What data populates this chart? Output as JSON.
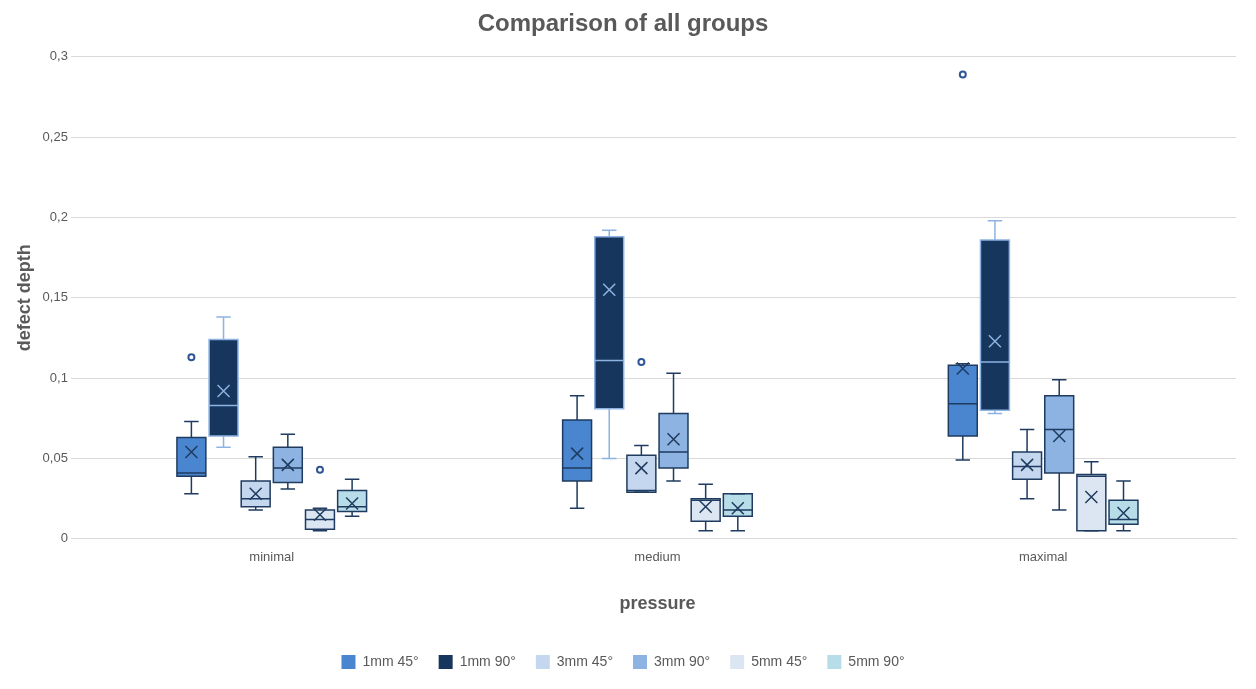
{
  "chart_data": {
    "type": "box",
    "title": "Comparison of all groups",
    "xlabel": "pressure",
    "ylabel": "defect depth",
    "categories": [
      "minimal",
      "medium",
      "maximal"
    ],
    "ylim": [
      0,
      0.3
    ],
    "yticks": [
      {
        "value": 0,
        "label": "0"
      },
      {
        "value": 0.05,
        "label": "0,05"
      },
      {
        "value": 0.1,
        "label": "0,1"
      },
      {
        "value": 0.15,
        "label": "0,15"
      },
      {
        "value": 0.2,
        "label": "0,2"
      },
      {
        "value": 0.25,
        "label": "0,25"
      },
      {
        "value": 0.3,
        "label": "0,3"
      }
    ],
    "grid": "y",
    "legend": "bottom",
    "series": [
      {
        "name": "1mm 45°",
        "color": "#4a86cf",
        "boxes": [
          {
            "low": 0.028,
            "q1": 0.039,
            "median": 0.041,
            "q3": 0.063,
            "high": 0.073,
            "mean": 0.054,
            "outliers": [
              0.113
            ]
          },
          {
            "low": 0.019,
            "q1": 0.036,
            "median": 0.044,
            "q3": 0.074,
            "high": 0.089,
            "mean": 0.053
          },
          {
            "low": 0.049,
            "q1": 0.064,
            "median": 0.084,
            "q3": 0.108,
            "high": 0.109,
            "mean": 0.106,
            "outliers": [
              0.289
            ]
          }
        ]
      },
      {
        "name": "1mm 90°",
        "color": "#17365d",
        "boxes": [
          {
            "low": 0.057,
            "q1": 0.064,
            "median": 0.083,
            "q3": 0.124,
            "high": 0.138,
            "mean": 0.092
          },
          {
            "low": 0.05,
            "q1": 0.081,
            "median": 0.111,
            "q3": 0.188,
            "high": 0.192,
            "mean": 0.155
          },
          {
            "low": 0.078,
            "q1": 0.08,
            "median": 0.11,
            "q3": 0.186,
            "high": 0.198,
            "mean": 0.123
          }
        ]
      },
      {
        "name": "3mm 45°",
        "color": "#c5d7ef",
        "boxes": [
          {
            "low": 0.018,
            "q1": 0.02,
            "median": 0.025,
            "q3": 0.036,
            "high": 0.051,
            "mean": 0.028
          },
          {
            "low": 0.029,
            "q1": 0.029,
            "median": 0.03,
            "q3": 0.052,
            "high": 0.058,
            "mean": 0.044,
            "outliers": [
              0.11
            ]
          },
          {
            "low": 0.025,
            "q1": 0.037,
            "median": 0.045,
            "q3": 0.054,
            "high": 0.068,
            "mean": 0.046
          }
        ]
      },
      {
        "name": "3mm 90°",
        "color": "#8db3e2",
        "boxes": [
          {
            "low": 0.031,
            "q1": 0.035,
            "median": 0.044,
            "q3": 0.057,
            "high": 0.065,
            "mean": 0.046
          },
          {
            "low": 0.036,
            "q1": 0.044,
            "median": 0.054,
            "q3": 0.078,
            "high": 0.103,
            "mean": 0.062
          },
          {
            "low": 0.018,
            "q1": 0.041,
            "median": 0.068,
            "q3": 0.089,
            "high": 0.099,
            "mean": 0.064
          }
        ]
      },
      {
        "name": "5mm 45°",
        "color": "#dce6f2",
        "boxes": [
          {
            "low": 0.005,
            "q1": 0.006,
            "median": 0.012,
            "q3": 0.018,
            "high": 0.019,
            "mean": 0.015,
            "outliers": [
              0.043
            ]
          },
          {
            "low": 0.005,
            "q1": 0.011,
            "median": 0.024,
            "q3": 0.025,
            "high": 0.034,
            "mean": 0.02
          },
          {
            "low": 0.005,
            "q1": 0.005,
            "median": 0.039,
            "q3": 0.04,
            "high": 0.048,
            "mean": 0.026
          }
        ]
      },
      {
        "name": "5mm 90°",
        "color": "#b7dde8",
        "boxes": [
          {
            "low": 0.014,
            "q1": 0.017,
            "median": 0.02,
            "q3": 0.03,
            "high": 0.037,
            "mean": 0.022
          },
          {
            "low": 0.005,
            "q1": 0.014,
            "median": 0.018,
            "q3": 0.028,
            "high": 0.028,
            "mean": 0.019
          },
          {
            "low": 0.005,
            "q1": 0.009,
            "median": 0.012,
            "q3": 0.024,
            "high": 0.036,
            "mean": 0.016
          }
        ]
      }
    ]
  }
}
